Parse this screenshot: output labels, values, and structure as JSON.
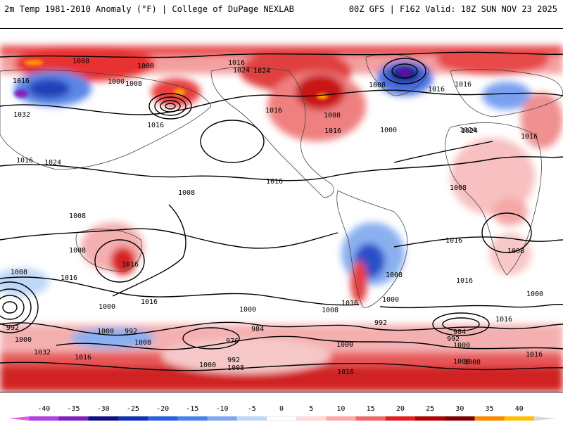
{
  "header": {
    "left": "2m Temp 1981-2010 Anomaly (°F) | College of DuPage NEXLAB",
    "right": "00Z GFS | F162 Valid: 18Z SUN NOV 23 2025"
  },
  "map": {
    "projection": "equirectangular global",
    "isobar_labels": [
      "1008",
      "1000",
      "1016",
      "1024",
      "1016",
      "1008",
      "1000",
      "1032",
      "1016",
      "1024",
      "1016",
      "1008",
      "1008",
      "1016",
      "1008",
      "1016",
      "1000",
      "1016",
      "1008",
      "1016",
      "1016",
      "1024",
      "1016",
      "1008",
      "1000",
      "1008",
      "1016",
      "1024",
      "1016",
      "1016",
      "1008",
      "1016",
      "1008",
      "1008",
      "992",
      "1000",
      "992",
      "984",
      "1000",
      "1008",
      "1016",
      "1000",
      "992",
      "1000",
      "1016",
      "1000",
      "976",
      "1008",
      "1000",
      "984",
      "992",
      "1000",
      "1008",
      "1016",
      "1008",
      "1032",
      "1016",
      "1000",
      "1016",
      "992",
      "1008",
      "1016",
      "1024"
    ]
  },
  "colorbar": {
    "ticks": [
      "-40",
      "-35",
      "-30",
      "-25",
      "-20",
      "-15",
      "-10",
      "-5",
      "0",
      "5",
      "10",
      "15",
      "20",
      "25",
      "30",
      "35",
      "40"
    ],
    "colors": [
      "#e060e0",
      "#b040e0",
      "#8020c0",
      "#101080",
      "#1030b0",
      "#2a60e0",
      "#4a80f0",
      "#80a8f0",
      "#c0d8f8",
      "#ffffff",
      "#ffd8d8",
      "#ffa8a8",
      "#f06868",
      "#e02020",
      "#b00000",
      "#800000",
      "#ff8800",
      "#ffc000",
      "#d8d8d8"
    ]
  }
}
